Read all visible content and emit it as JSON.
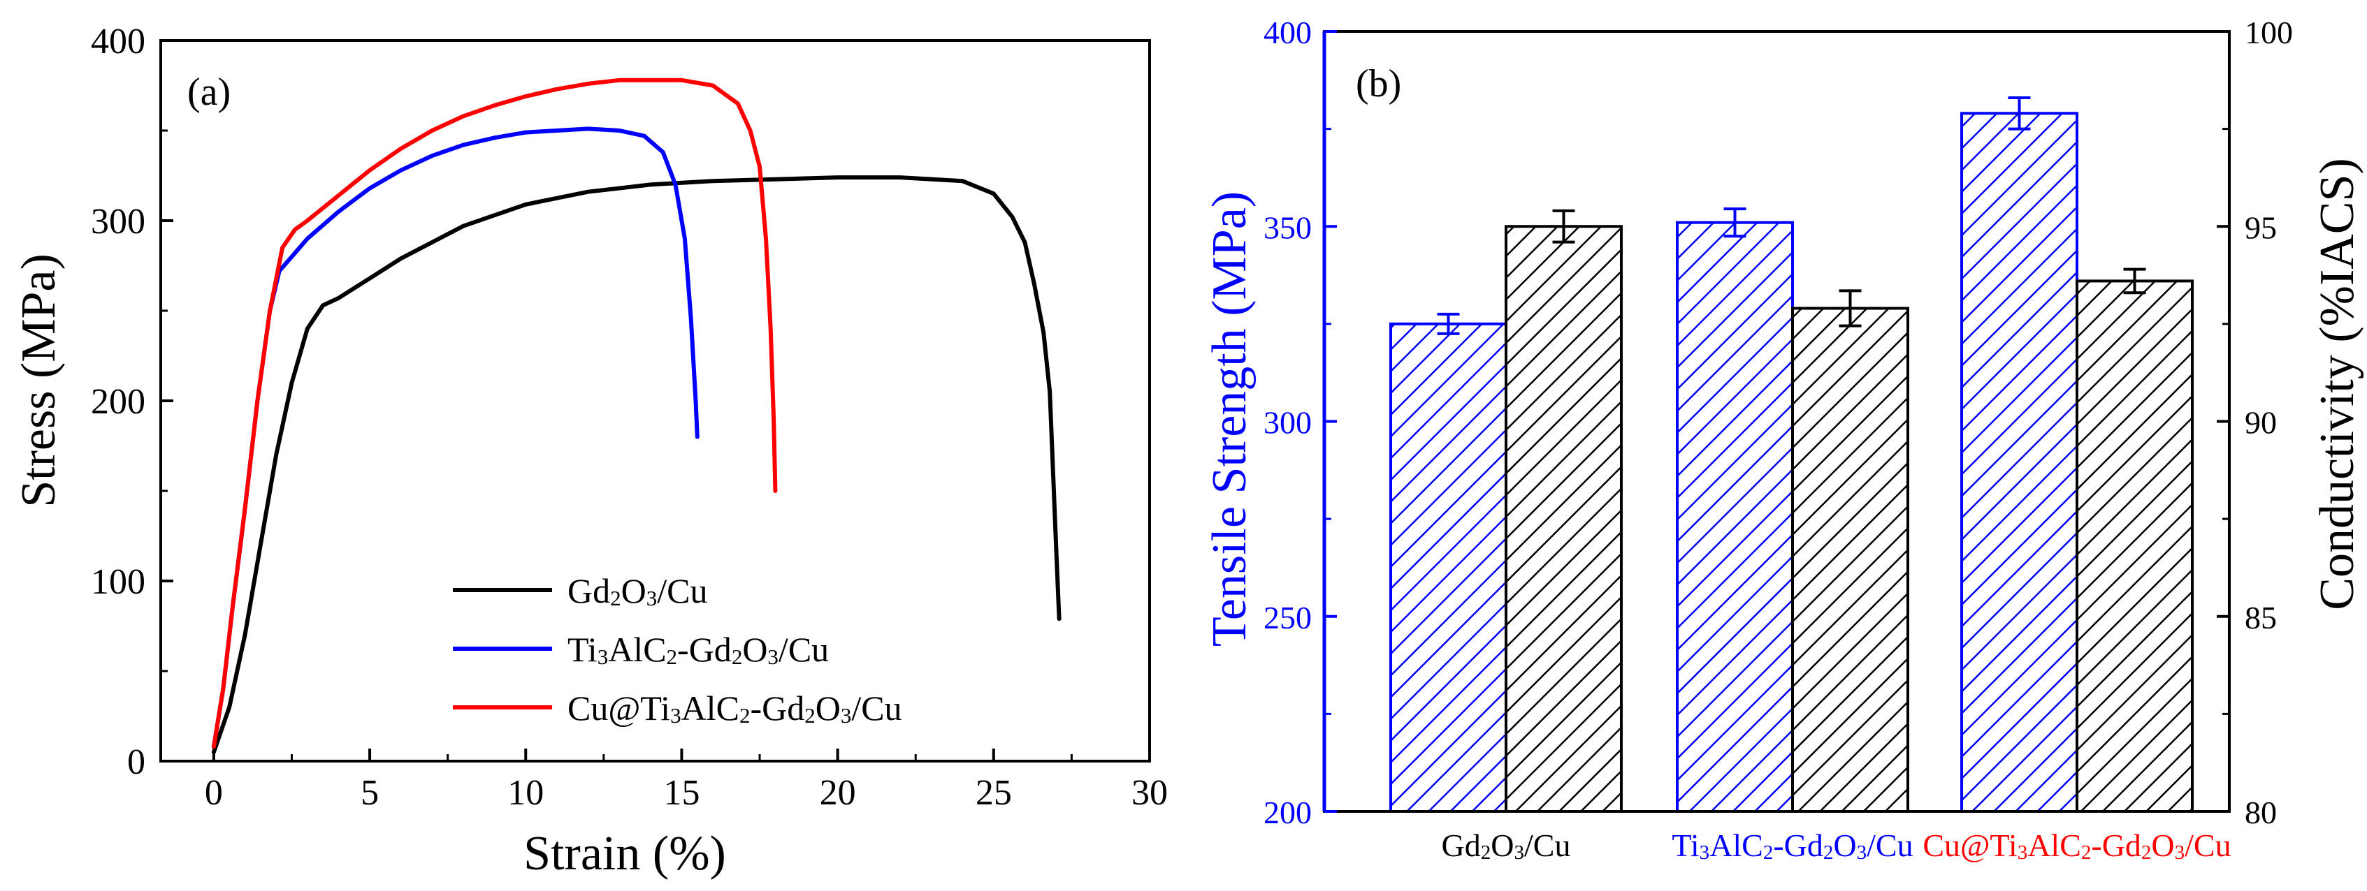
{
  "chart_data": [
    {
      "panel_label": "(a)",
      "type": "line",
      "xlabel": "Strain (%)",
      "ylabel": "Stress (MPa)",
      "xlim": [
        -1.7,
        30
      ],
      "ylim": [
        0,
        400
      ],
      "xticks": [
        "0",
        "5",
        "10",
        "15",
        "20",
        "25",
        "30"
      ],
      "yticks": [
        "0",
        "100",
        "200",
        "300",
        "400"
      ],
      "legend_position": "lower-center",
      "series": [
        {
          "name": "Gd2O3/Cu",
          "legend_parts": [
            [
              "Gd",
              false
            ],
            [
              "2",
              true
            ],
            [
              "O",
              false
            ],
            [
              "3",
              true
            ],
            [
              "/Cu",
              false
            ]
          ],
          "color": "#000000",
          "points": [
            [
              0,
              5
            ],
            [
              0.5,
              30
            ],
            [
              1,
              70
            ],
            [
              1.5,
              120
            ],
            [
              2,
              170
            ],
            [
              2.5,
              210
            ],
            [
              3,
              240
            ],
            [
              3.5,
              253
            ],
            [
              4,
              257
            ],
            [
              5,
              268
            ],
            [
              6,
              279
            ],
            [
              8,
              297
            ],
            [
              10,
              309
            ],
            [
              12,
              316
            ],
            [
              14,
              320
            ],
            [
              16,
              322
            ],
            [
              18,
              323
            ],
            [
              20,
              324
            ],
            [
              22,
              324
            ],
            [
              24,
              322
            ],
            [
              25,
              315
            ],
            [
              25.6,
              302
            ],
            [
              26,
              288
            ],
            [
              26.3,
              265
            ],
            [
              26.6,
              238
            ],
            [
              26.8,
              205
            ],
            [
              27,
              120
            ],
            [
              27.1,
              79
            ]
          ]
        },
        {
          "name": "Ti3AlC2-Gd2O3/Cu",
          "legend_parts": [
            [
              "Ti",
              false
            ],
            [
              "3",
              true
            ],
            [
              "AlC",
              false
            ],
            [
              "2",
              true
            ],
            [
              "-Gd",
              false
            ],
            [
              "2",
              true
            ],
            [
              "O",
              false
            ],
            [
              "3",
              true
            ],
            [
              "/Cu",
              false
            ]
          ],
          "color": "#0000ff",
          "points": [
            [
              0,
              8
            ],
            [
              0.3,
              40
            ],
            [
              0.6,
              85
            ],
            [
              1,
              140
            ],
            [
              1.4,
              200
            ],
            [
              1.8,
              250
            ],
            [
              2.1,
              272
            ],
            [
              2.5,
              280
            ],
            [
              3,
              290
            ],
            [
              4,
              305
            ],
            [
              5,
              318
            ],
            [
              6,
              328
            ],
            [
              7,
              336
            ],
            [
              8,
              342
            ],
            [
              9,
              346
            ],
            [
              10,
              349
            ],
            [
              11,
              350
            ],
            [
              12,
              351
            ],
            [
              13,
              350
            ],
            [
              13.8,
              347
            ],
            [
              14.4,
              338
            ],
            [
              14.8,
              320
            ],
            [
              15.1,
              290
            ],
            [
              15.3,
              245
            ],
            [
              15.45,
              200
            ],
            [
              15.5,
              180
            ]
          ]
        },
        {
          "name": "Cu@Ti3AlC2-Gd2O3/Cu",
          "legend_parts": [
            [
              "Cu@Ti",
              false
            ],
            [
              "3",
              true
            ],
            [
              "AlC",
              false
            ],
            [
              "2",
              true
            ],
            [
              "-Gd",
              false
            ],
            [
              "2",
              true
            ],
            [
              "O",
              false
            ],
            [
              "3",
              true
            ],
            [
              "/Cu",
              false
            ]
          ],
          "color": "#ff0000",
          "points": [
            [
              0,
              8
            ],
            [
              0.3,
              40
            ],
            [
              0.6,
              85
            ],
            [
              1,
              140
            ],
            [
              1.4,
              200
            ],
            [
              1.8,
              250
            ],
            [
              2.2,
              285
            ],
            [
              2.6,
              295
            ],
            [
              3,
              300
            ],
            [
              4,
              314
            ],
            [
              5,
              328
            ],
            [
              6,
              340
            ],
            [
              7,
              350
            ],
            [
              8,
              358
            ],
            [
              9,
              364
            ],
            [
              10,
              369
            ],
            [
              11,
              373
            ],
            [
              12,
              376
            ],
            [
              13,
              378
            ],
            [
              14,
              378
            ],
            [
              15,
              378
            ],
            [
              16,
              375
            ],
            [
              16.8,
              365
            ],
            [
              17.2,
              350
            ],
            [
              17.5,
              330
            ],
            [
              17.7,
              290
            ],
            [
              17.85,
              240
            ],
            [
              17.95,
              190
            ],
            [
              18,
              150
            ]
          ]
        }
      ]
    },
    {
      "panel_label": "(b)",
      "type": "bar",
      "categories": [
        "Gd2O3/Cu",
        "Ti3AlC2-Gd2O3/Cu",
        "Cu@Ti3AlC2-Gd2O3/Cu"
      ],
      "category_parts": [
        [
          [
            "Gd",
            false
          ],
          [
            "2",
            true
          ],
          [
            "O",
            false
          ],
          [
            "3",
            true
          ],
          [
            "/Cu",
            false
          ]
        ],
        [
          [
            "Ti",
            false
          ],
          [
            "3",
            true
          ],
          [
            "AlC",
            false
          ],
          [
            "2",
            true
          ],
          [
            "-Gd",
            false
          ],
          [
            "2",
            true
          ],
          [
            "O",
            false
          ],
          [
            "3",
            true
          ],
          [
            "/Cu",
            false
          ]
        ],
        [
          [
            "Cu@Ti",
            false
          ],
          [
            "3",
            true
          ],
          [
            "AlC",
            false
          ],
          [
            "2",
            true
          ],
          [
            "-Gd",
            false
          ],
          [
            "2",
            true
          ],
          [
            "O",
            false
          ],
          [
            "3",
            true
          ],
          [
            "/Cu",
            false
          ]
        ]
      ],
      "category_colors": [
        "#000000",
        "#0000ff",
        "#ff0000"
      ],
      "ylabel_left": "Tensile Strength (MPa)",
      "ylabel_right": "Conductivity (%IACS)",
      "ylim_left": [
        200,
        400
      ],
      "ylim_right": [
        80,
        100
      ],
      "yticks_left": [
        "200",
        "250",
        "300",
        "350",
        "400"
      ],
      "yticks_right": [
        "80",
        "85",
        "90",
        "95",
        "100"
      ],
      "series": [
        {
          "name": "Tensile Strength",
          "axis": "left",
          "color": "#0000ff",
          "values": [
            325,
            351,
            379
          ],
          "errors": [
            2.5,
            3.5,
            4
          ]
        },
        {
          "name": "Conductivity",
          "axis": "right",
          "color": "#000000",
          "values": [
            95,
            92.9,
            93.6
          ],
          "errors": [
            0.4,
            0.45,
            0.3
          ]
        }
      ]
    }
  ]
}
